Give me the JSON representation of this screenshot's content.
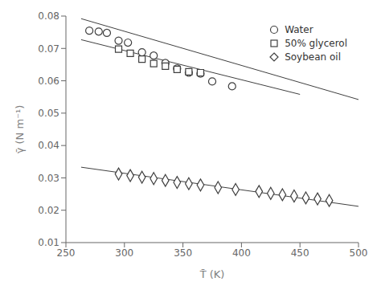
{
  "chart_data": {
    "type": "scatter",
    "xlabel": "T̄ (K)",
    "ylabel": "γ̄ (N m⁻¹)",
    "xlim": [
      250,
      500
    ],
    "ylim": [
      0.01,
      0.08
    ],
    "xticks": [
      250,
      300,
      350,
      400,
      450,
      500
    ],
    "yticks": [
      0.01,
      0.02,
      0.03,
      0.04,
      0.05,
      0.06,
      0.07,
      0.08
    ],
    "grid": false,
    "legend": "upper right",
    "series": [
      {
        "type": "line",
        "color": "#404040",
        "x": [
          263,
          500
        ],
        "values": [
          0.0792,
          0.0542
        ]
      },
      {
        "type": "line",
        "color": "#404040",
        "x": [
          263,
          450
        ],
        "values": [
          0.0727,
          0.0558
        ]
      },
      {
        "type": "line",
        "color": "#404040",
        "x": [
          263,
          500
        ],
        "values": [
          0.0333,
          0.0212
        ]
      },
      {
        "type": "scatter",
        "name": "Water",
        "color": "#404040",
        "marker": "circle",
        "x": [
          270,
          278,
          285,
          295,
          303,
          315,
          325,
          335,
          345,
          355,
          365,
          375,
          392
        ],
        "values": [
          0.0755,
          0.0752,
          0.0748,
          0.0724,
          0.0718,
          0.0688,
          0.0678,
          0.0655,
          0.0638,
          0.0625,
          0.0622,
          0.0598,
          0.0583
        ]
      },
      {
        "type": "scatter",
        "name": "50% glycerol",
        "color": "#404040",
        "marker": "square",
        "x": [
          295,
          305,
          315,
          325,
          335,
          345,
          355,
          365
        ],
        "values": [
          0.0698,
          0.0685,
          0.0667,
          0.0653,
          0.0645,
          0.0635,
          0.0628,
          0.0625
        ]
      },
      {
        "type": "scatter",
        "name": "Soybean oil",
        "color": "#404040",
        "marker": "diamond",
        "x": [
          295,
          305,
          315,
          325,
          335,
          345,
          355,
          365,
          380,
          395,
          415,
          425,
          435,
          445,
          455,
          465,
          475
        ],
        "values": [
          0.0312,
          0.0307,
          0.0302,
          0.0298,
          0.0292,
          0.0286,
          0.0282,
          0.0278,
          0.027,
          0.0264,
          0.0258,
          0.0252,
          0.0248,
          0.0244,
          0.0238,
          0.0235,
          0.023
        ]
      }
    ]
  }
}
